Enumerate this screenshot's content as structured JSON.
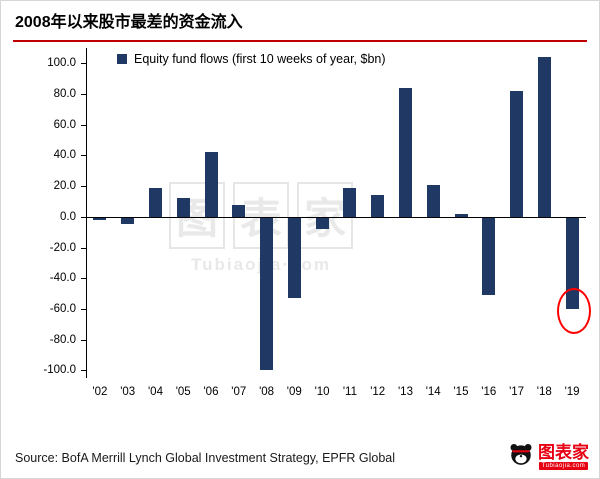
{
  "page": {
    "title": "2008年以来股市最差的资金流入"
  },
  "legend": {
    "label": "Equity fund flows (first 10 weeks of year, $bn)"
  },
  "footer": {
    "source": "Source: BofA Merrill Lynch Global Investment Strategy, EPFR Global"
  },
  "logo": {
    "brand": "图表家",
    "url_text": "Tubiaojia.com"
  },
  "watermark": {
    "chars": [
      "图",
      "表",
      "家"
    ],
    "subtext": "Tubiaojia·com"
  },
  "colors": {
    "bar": "#1f3864",
    "rule": "#c00000",
    "annotation": "#ff0000",
    "axis": "#000000"
  },
  "chart_data": {
    "type": "bar",
    "title": "Equity fund flows (first 10 weeks of year, $bn)",
    "categories": [
      "'02",
      "'03",
      "'04",
      "'05",
      "'06",
      "'07",
      "'08",
      "'09",
      "'10",
      "'11",
      "'12",
      "'13",
      "'14",
      "'15",
      "'16",
      "'17",
      "'18",
      "'19"
    ],
    "values": [
      -2,
      -5,
      19,
      12,
      42,
      8,
      -100,
      -53,
      -8,
      19,
      14,
      84,
      21,
      2,
      -51,
      82,
      104,
      -60
    ],
    "xlabel": "",
    "ylabel": "",
    "ylim": [
      -100,
      100
    ],
    "yticks": [
      100,
      80,
      60,
      40,
      20,
      0,
      -20,
      -40,
      -60,
      -80,
      -100
    ],
    "grid": false,
    "legend_position": "top-left-inside",
    "annotation": {
      "type": "circle",
      "category": "'19",
      "color": "#ff0000",
      "note": "worst flows since 2008 highlighted"
    }
  }
}
